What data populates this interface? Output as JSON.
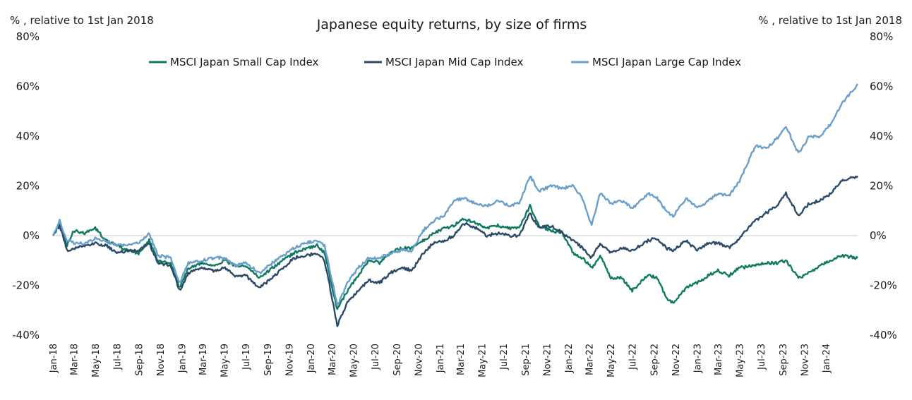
{
  "chart_data": {
    "type": "line",
    "title": "Japanese equity returns, by size of firms",
    "y_unit_left": "% , relative to 1st Jan 2018",
    "y_unit_right": "% , relative to 1st Jan 2018",
    "ylim": [
      -40,
      80
    ],
    "y_ticks": [
      80,
      60,
      40,
      20,
      0,
      -20,
      -40
    ],
    "y_tick_labels": [
      "80%",
      "60%",
      "40%",
      "20%",
      "0%",
      "-20%",
      "-40%"
    ],
    "x_tick_labels": [
      "Jan-18",
      "Mar-18",
      "May-18",
      "Jul-18",
      "Sep-18",
      "Nov-18",
      "Jan-19",
      "Mar-19",
      "May-19",
      "Jul-19",
      "Sep-19",
      "Nov-19",
      "Jan-20",
      "Mar-20",
      "May-20",
      "Jul-20",
      "Sep-20",
      "Nov-20",
      "Jan-21",
      "Mar-21",
      "May-21",
      "Jul-21",
      "Sep-21",
      "Nov-21",
      "Jan-22",
      "Mar-22",
      "May-22",
      "Jul-22",
      "Sep-22",
      "Nov-22",
      "Jan-23",
      "Mar-23",
      "May-23",
      "Jul-23",
      "Sep-23",
      "Nov-23",
      "Jan-24"
    ],
    "x_range": [
      "2018-01-01",
      "2024-03-31"
    ],
    "legend_position": "top",
    "grid": false,
    "series": [
      {
        "name": "MSCI Japan Small Cap Index",
        "color": "#0f7a5f",
        "points": [
          [
            "2018-01-01",
            0
          ],
          [
            "2018-01-20",
            5
          ],
          [
            "2018-02-10",
            -4
          ],
          [
            "2018-03-01",
            2
          ],
          [
            "2018-04-01",
            1
          ],
          [
            "2018-05-01",
            3
          ],
          [
            "2018-06-01",
            -2
          ],
          [
            "2018-07-01",
            -4
          ],
          [
            "2018-08-01",
            -6
          ],
          [
            "2018-09-01",
            -7
          ],
          [
            "2018-10-01",
            -2
          ],
          [
            "2018-10-25",
            -10
          ],
          [
            "2018-12-01",
            -11
          ],
          [
            "2018-12-26",
            -21
          ],
          [
            "2019-01-20",
            -13
          ],
          [
            "2019-03-01",
            -11
          ],
          [
            "2019-04-01",
            -12
          ],
          [
            "2019-05-01",
            -10
          ],
          [
            "2019-06-01",
            -12
          ],
          [
            "2019-07-01",
            -12
          ],
          [
            "2019-08-10",
            -17
          ],
          [
            "2019-09-15",
            -13
          ],
          [
            "2019-10-15",
            -10
          ],
          [
            "2019-11-15",
            -7
          ],
          [
            "2019-12-20",
            -5
          ],
          [
            "2020-01-20",
            -4
          ],
          [
            "2020-02-10",
            -7
          ],
          [
            "2020-03-17",
            -30
          ],
          [
            "2020-04-15",
            -22
          ],
          [
            "2020-05-15",
            -16
          ],
          [
            "2020-06-15",
            -10
          ],
          [
            "2020-07-15",
            -11
          ],
          [
            "2020-08-15",
            -7
          ],
          [
            "2020-09-15",
            -5
          ],
          [
            "2020-10-15",
            -5
          ],
          [
            "2020-11-15",
            -2
          ],
          [
            "2020-12-15",
            1
          ],
          [
            "2021-01-15",
            3
          ],
          [
            "2021-02-10",
            4
          ],
          [
            "2021-03-10",
            7
          ],
          [
            "2021-04-15",
            5
          ],
          [
            "2021-05-15",
            3
          ],
          [
            "2021-06-15",
            4
          ],
          [
            "2021-07-15",
            3
          ],
          [
            "2021-08-15",
            3
          ],
          [
            "2021-09-14",
            12
          ],
          [
            "2021-10-10",
            4
          ],
          [
            "2021-11-15",
            2
          ],
          [
            "2021-12-15",
            1
          ],
          [
            "2022-01-15",
            -7
          ],
          [
            "2022-02-10",
            -9
          ],
          [
            "2022-03-08",
            -13
          ],
          [
            "2022-04-01",
            -8
          ],
          [
            "2022-05-01",
            -17
          ],
          [
            "2022-06-01",
            -17
          ],
          [
            "2022-07-01",
            -22
          ],
          [
            "2022-08-15",
            -16
          ],
          [
            "2022-09-10",
            -17
          ],
          [
            "2022-10-05",
            -25
          ],
          [
            "2022-10-25",
            -27
          ],
          [
            "2022-12-01",
            -21
          ],
          [
            "2023-01-01",
            -19
          ],
          [
            "2023-02-01",
            -16
          ],
          [
            "2023-03-01",
            -14
          ],
          [
            "2023-04-01",
            -16
          ],
          [
            "2023-05-01",
            -13
          ],
          [
            "2023-06-15",
            -12
          ],
          [
            "2023-07-15",
            -11
          ],
          [
            "2023-08-15",
            -11
          ],
          [
            "2023-09-10",
            -10
          ],
          [
            "2023-10-15",
            -17
          ],
          [
            "2023-11-15",
            -15
          ],
          [
            "2023-12-15",
            -12
          ],
          [
            "2024-01-15",
            -10
          ],
          [
            "2024-02-15",
            -8
          ],
          [
            "2024-03-31",
            -9
          ]
        ]
      },
      {
        "name": "MSCI Japan Mid Cap Index",
        "color": "#2b4a6a",
        "points": [
          [
            "2018-01-01",
            0
          ],
          [
            "2018-01-20",
            4
          ],
          [
            "2018-02-10",
            -6
          ],
          [
            "2018-03-01",
            -5
          ],
          [
            "2018-04-01",
            -4
          ],
          [
            "2018-05-01",
            -3
          ],
          [
            "2018-06-01",
            -4
          ],
          [
            "2018-07-01",
            -7
          ],
          [
            "2018-08-01",
            -6
          ],
          [
            "2018-09-01",
            -6
          ],
          [
            "2018-10-01",
            -3
          ],
          [
            "2018-10-25",
            -11
          ],
          [
            "2018-12-01",
            -12
          ],
          [
            "2018-12-26",
            -22
          ],
          [
            "2019-01-20",
            -15
          ],
          [
            "2019-03-01",
            -13
          ],
          [
            "2019-04-01",
            -14
          ],
          [
            "2019-05-01",
            -13
          ],
          [
            "2019-06-01",
            -16
          ],
          [
            "2019-07-01",
            -16
          ],
          [
            "2019-08-10",
            -21
          ],
          [
            "2019-09-15",
            -17
          ],
          [
            "2019-10-15",
            -13
          ],
          [
            "2019-11-15",
            -9
          ],
          [
            "2019-12-20",
            -8
          ],
          [
            "2020-01-20",
            -7
          ],
          [
            "2020-02-10",
            -10
          ],
          [
            "2020-03-17",
            -36
          ],
          [
            "2020-04-15",
            -27
          ],
          [
            "2020-05-15",
            -22
          ],
          [
            "2020-06-15",
            -18
          ],
          [
            "2020-07-15",
            -19
          ],
          [
            "2020-08-15",
            -15
          ],
          [
            "2020-09-15",
            -13
          ],
          [
            "2020-10-15",
            -14
          ],
          [
            "2020-11-15",
            -7
          ],
          [
            "2020-12-15",
            -3
          ],
          [
            "2021-01-15",
            -2
          ],
          [
            "2021-02-10",
            0
          ],
          [
            "2021-03-10",
            5
          ],
          [
            "2021-04-15",
            3
          ],
          [
            "2021-05-15",
            0
          ],
          [
            "2021-06-15",
            1
          ],
          [
            "2021-07-15",
            0
          ],
          [
            "2021-08-15",
            0
          ],
          [
            "2021-09-14",
            9
          ],
          [
            "2021-10-10",
            3
          ],
          [
            "2021-11-15",
            4
          ],
          [
            "2021-12-15",
            1
          ],
          [
            "2022-01-15",
            -2
          ],
          [
            "2022-02-10",
            -5
          ],
          [
            "2022-03-08",
            -9
          ],
          [
            "2022-04-01",
            -3
          ],
          [
            "2022-05-01",
            -7
          ],
          [
            "2022-06-01",
            -5
          ],
          [
            "2022-07-01",
            -6
          ],
          [
            "2022-08-15",
            -2
          ],
          [
            "2022-09-10",
            -1
          ],
          [
            "2022-10-05",
            -5
          ],
          [
            "2022-10-25",
            -6
          ],
          [
            "2022-12-01",
            -2
          ],
          [
            "2023-01-01",
            -6
          ],
          [
            "2023-02-01",
            -3
          ],
          [
            "2023-03-01",
            -3
          ],
          [
            "2023-04-01",
            -5
          ],
          [
            "2023-05-01",
            -1
          ],
          [
            "2023-06-15",
            6
          ],
          [
            "2023-07-15",
            9
          ],
          [
            "2023-08-15",
            12
          ],
          [
            "2023-09-10",
            17
          ],
          [
            "2023-10-15",
            8
          ],
          [
            "2023-11-15",
            13
          ],
          [
            "2023-12-15",
            14
          ],
          [
            "2024-01-15",
            17
          ],
          [
            "2024-02-15",
            22
          ],
          [
            "2024-03-31",
            24
          ]
        ]
      },
      {
        "name": "MSCI Japan Large Cap Index",
        "color": "#6a9fcc",
        "points": [
          [
            "2018-01-01",
            0
          ],
          [
            "2018-01-20",
            6
          ],
          [
            "2018-02-10",
            -2
          ],
          [
            "2018-03-01",
            -3
          ],
          [
            "2018-04-01",
            -3
          ],
          [
            "2018-05-01",
            -1
          ],
          [
            "2018-06-01",
            -2
          ],
          [
            "2018-07-01",
            -4
          ],
          [
            "2018-08-01",
            -4
          ],
          [
            "2018-09-01",
            -3
          ],
          [
            "2018-10-01",
            1
          ],
          [
            "2018-10-25",
            -8
          ],
          [
            "2018-12-01",
            -9
          ],
          [
            "2018-12-26",
            -19
          ],
          [
            "2019-01-20",
            -11
          ],
          [
            "2019-03-01",
            -10
          ],
          [
            "2019-04-01",
            -9
          ],
          [
            "2019-05-01",
            -9
          ],
          [
            "2019-06-01",
            -12
          ],
          [
            "2019-07-01",
            -11
          ],
          [
            "2019-08-10",
            -15
          ],
          [
            "2019-09-15",
            -11
          ],
          [
            "2019-10-15",
            -8
          ],
          [
            "2019-11-15",
            -5
          ],
          [
            "2019-12-20",
            -3
          ],
          [
            "2020-01-20",
            -2
          ],
          [
            "2020-02-10",
            -4
          ],
          [
            "2020-03-17",
            -28
          ],
          [
            "2020-04-15",
            -19
          ],
          [
            "2020-05-15",
            -13
          ],
          [
            "2020-06-15",
            -9
          ],
          [
            "2020-07-15",
            -9
          ],
          [
            "2020-08-15",
            -7
          ],
          [
            "2020-09-15",
            -6
          ],
          [
            "2020-10-15",
            -6
          ],
          [
            "2020-11-15",
            2
          ],
          [
            "2020-12-15",
            6
          ],
          [
            "2021-01-15",
            8
          ],
          [
            "2021-02-10",
            14
          ],
          [
            "2021-03-10",
            15
          ],
          [
            "2021-04-15",
            13
          ],
          [
            "2021-05-15",
            12
          ],
          [
            "2021-06-15",
            14
          ],
          [
            "2021-07-15",
            12
          ],
          [
            "2021-08-15",
            13
          ],
          [
            "2021-09-14",
            24
          ],
          [
            "2021-10-10",
            18
          ],
          [
            "2021-11-15",
            20
          ],
          [
            "2021-12-15",
            19
          ],
          [
            "2022-01-15",
            20
          ],
          [
            "2022-02-10",
            15
          ],
          [
            "2022-03-08",
            4
          ],
          [
            "2022-04-01",
            17
          ],
          [
            "2022-05-01",
            13
          ],
          [
            "2022-06-01",
            14
          ],
          [
            "2022-07-01",
            11
          ],
          [
            "2022-08-15",
            17
          ],
          [
            "2022-09-10",
            15
          ],
          [
            "2022-10-05",
            10
          ],
          [
            "2022-10-25",
            8
          ],
          [
            "2022-12-01",
            15
          ],
          [
            "2023-01-01",
            11
          ],
          [
            "2023-02-01",
            14
          ],
          [
            "2023-03-01",
            17
          ],
          [
            "2023-04-01",
            16
          ],
          [
            "2023-05-01",
            22
          ],
          [
            "2023-06-15",
            36
          ],
          [
            "2023-07-15",
            35
          ],
          [
            "2023-08-15",
            39
          ],
          [
            "2023-09-10",
            44
          ],
          [
            "2023-10-15",
            33
          ],
          [
            "2023-11-15",
            40
          ],
          [
            "2023-12-15",
            40
          ],
          [
            "2024-01-15",
            45
          ],
          [
            "2024-02-15",
            53
          ],
          [
            "2024-03-31",
            61
          ]
        ]
      }
    ]
  }
}
